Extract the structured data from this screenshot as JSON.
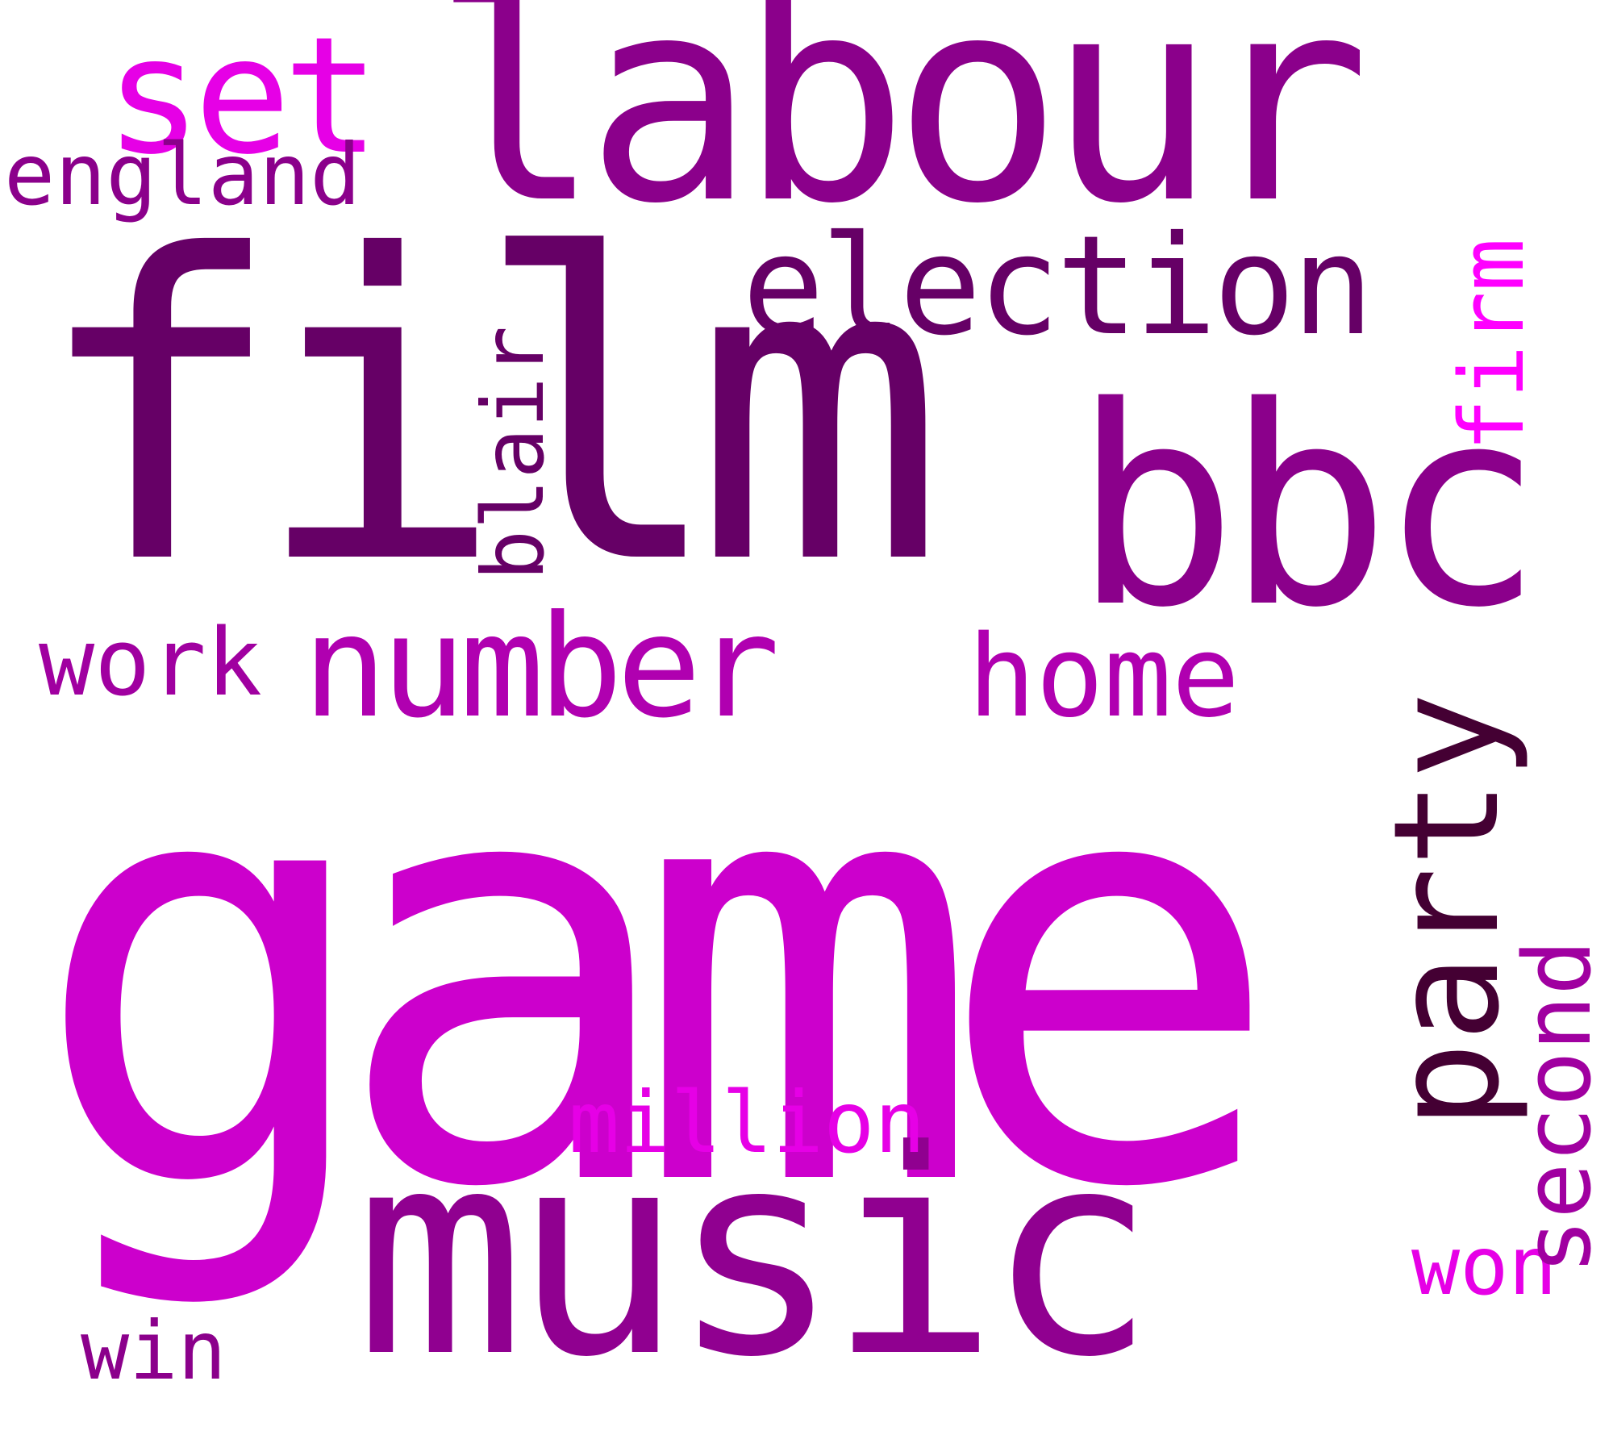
{
  "words": {
    "game": {
      "text": "game",
      "color": "#cc00cc"
    },
    "film": {
      "text": "film",
      "color": "#660066"
    },
    "labour": {
      "text": "labour",
      "color": "#8b008b"
    },
    "music": {
      "text": "music",
      "color": "#900090"
    },
    "bbc": {
      "text": "bbc",
      "color": "#8b008b"
    },
    "election": {
      "text": "election",
      "color": "#660066"
    },
    "number": {
      "text": "number",
      "color": "#b000b0"
    },
    "home": {
      "text": "home",
      "color": "#b000b0"
    },
    "set": {
      "text": "set",
      "color": "#e600e6"
    },
    "england": {
      "text": "england",
      "color": "#8b008b"
    },
    "work": {
      "text": "work",
      "color": "#a000a0"
    },
    "million": {
      "text": "million",
      "color": "#e600e6"
    },
    "win": {
      "text": "win",
      "color": "#8b008b"
    },
    "won": {
      "text": "won",
      "color": "#e600e6"
    },
    "blair": {
      "text": "blair",
      "color": "#660066"
    },
    "firm": {
      "text": "firm",
      "color": "#ff00ff"
    },
    "party": {
      "text": "party",
      "color": "#440033"
    },
    "second": {
      "text": "second",
      "color": "#a000a0"
    }
  }
}
